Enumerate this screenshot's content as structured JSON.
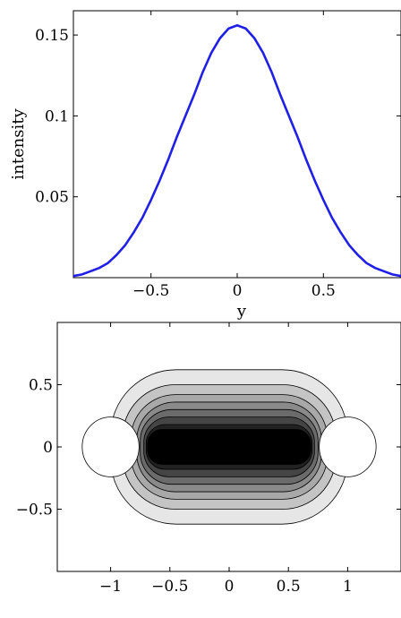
{
  "chart_data": [
    {
      "type": "line",
      "xlabel": "y",
      "ylabel": "intensity",
      "xlim": [
        -0.95,
        0.95
      ],
      "ylim": [
        0,
        0.165
      ],
      "xticks": [
        -0.5,
        0,
        0.5
      ],
      "xtick_labels": [
        "−0.5",
        "0",
        "0.5"
      ],
      "yticks": [
        0.05,
        0.1,
        0.15
      ],
      "ytick_labels": [
        "0.05",
        "0.1",
        "0.15"
      ],
      "grid": false,
      "series": [
        {
          "color": "#1f1fe6",
          "x": [
            -0.95,
            -0.9,
            -0.85,
            -0.8,
            -0.75,
            -0.7,
            -0.65,
            -0.6,
            -0.55,
            -0.5,
            -0.45,
            -0.4,
            -0.35,
            -0.3,
            -0.25,
            -0.2,
            -0.15,
            -0.1,
            -0.05,
            0,
            0.05,
            0.1,
            0.15,
            0.2,
            0.25,
            0.3,
            0.35,
            0.4,
            0.45,
            0.5,
            0.55,
            0.6,
            0.65,
            0.7,
            0.75,
            0.8,
            0.85,
            0.9,
            0.95
          ],
          "y": [
            0.001,
            0.002,
            0.004,
            0.006,
            0.009,
            0.014,
            0.02,
            0.028,
            0.037,
            0.048,
            0.06,
            0.073,
            0.087,
            0.1,
            0.113,
            0.127,
            0.139,
            0.148,
            0.154,
            0.156,
            0.154,
            0.148,
            0.139,
            0.127,
            0.113,
            0.1,
            0.087,
            0.073,
            0.06,
            0.048,
            0.037,
            0.028,
            0.02,
            0.014,
            0.009,
            0.006,
            0.004,
            0.002,
            0.001
          ]
        }
      ]
    },
    {
      "type": "heatmap",
      "subtype": "filled-contour",
      "xlim": [
        -1.45,
        1.45
      ],
      "ylim": [
        -1,
        1
      ],
      "xticks": [
        -1,
        -0.5,
        0,
        0.5,
        1
      ],
      "xtick_labels": [
        "−1",
        "−0.5",
        "0",
        "0.5",
        "1"
      ],
      "yticks": [
        -0.5,
        0,
        0.5
      ],
      "ytick_labels": [
        "−0.5",
        "0",
        "0.5"
      ],
      "grid": false,
      "colormap": "gray (light = low, black = high)",
      "levels": [
        {
          "half_width": 1.0,
          "half_height": 0.62,
          "fill": "#e6e6e6"
        },
        {
          "half_width": 0.9,
          "half_height": 0.5,
          "fill": "#c4c4c4"
        },
        {
          "half_width": 0.83,
          "half_height": 0.42,
          "fill": "#a8a8a8"
        },
        {
          "half_width": 0.78,
          "half_height": 0.36,
          "fill": "#8a8a8a"
        },
        {
          "half_width": 0.75,
          "half_height": 0.3,
          "fill": "#6b6b6b"
        },
        {
          "half_width": 0.72,
          "half_height": 0.24,
          "fill": "#454545"
        },
        {
          "half_width": 0.7,
          "half_height": 0.18,
          "fill": "#222222"
        },
        {
          "half_width": 0.69,
          "half_height": 0.14,
          "fill": "#000000"
        }
      ],
      "excluded_regions": [
        {
          "center": [
            -1.0,
            0
          ],
          "rx": 0.24,
          "ry": 0.24,
          "fill": "#ffffff"
        },
        {
          "center": [
            1.0,
            0
          ],
          "rx": 0.24,
          "ry": 0.24,
          "fill": "#ffffff"
        }
      ]
    }
  ]
}
